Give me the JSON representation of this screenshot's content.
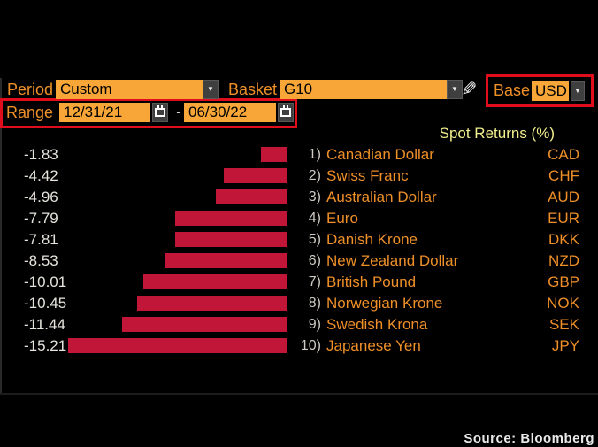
{
  "toolbar": {
    "period": {
      "label": "Period",
      "value": "Custom"
    },
    "basket": {
      "label": "Basket",
      "value": "G10"
    },
    "base": {
      "label": "Base",
      "value": "USD"
    },
    "range": {
      "label": "Range",
      "start": "12/31/21",
      "separator": "-",
      "end": "06/30/22"
    }
  },
  "chart_data": {
    "type": "bar",
    "orientation": "horizontal",
    "title": "Spot Returns (%)",
    "axis_max_abs": 15.21,
    "xlim": [
      -15.21,
      0
    ],
    "bar_color": "#C11637",
    "rows": [
      {
        "rank": "1)",
        "name": "Canadian Dollar",
        "code": "CAD",
        "value": -1.83
      },
      {
        "rank": "2)",
        "name": "Swiss Franc",
        "code": "CHF",
        "value": -4.42
      },
      {
        "rank": "3)",
        "name": "Australian Dollar",
        "code": "AUD",
        "value": -4.96
      },
      {
        "rank": "4)",
        "name": "Euro",
        "code": "EUR",
        "value": -7.79
      },
      {
        "rank": "5)",
        "name": "Danish Krone",
        "code": "DKK",
        "value": -7.81
      },
      {
        "rank": "6)",
        "name": "New Zealand Dollar",
        "code": "NZD",
        "value": -8.53
      },
      {
        "rank": "7)",
        "name": "British Pound",
        "code": "GBP",
        "value": -10.01
      },
      {
        "rank": "8)",
        "name": "Norwegian Krone",
        "code": "NOK",
        "value": -10.45
      },
      {
        "rank": "9)",
        "name": "Swedish Krona",
        "code": "SEK",
        "value": -11.44
      },
      {
        "rank": "10)",
        "name": "Japanese Yen",
        "code": "JPY",
        "value": -15.21
      }
    ]
  },
  "footer": {
    "source": "Source: Bloomberg"
  },
  "colors": {
    "background": "#000000",
    "amber_field": "#F7A637",
    "orange_text": "#EE8F28",
    "bar_red": "#C11637",
    "annotation_red": "#E00E1C",
    "title_yellow": "#F2EF8D",
    "value_text": "#E6E3DC"
  }
}
